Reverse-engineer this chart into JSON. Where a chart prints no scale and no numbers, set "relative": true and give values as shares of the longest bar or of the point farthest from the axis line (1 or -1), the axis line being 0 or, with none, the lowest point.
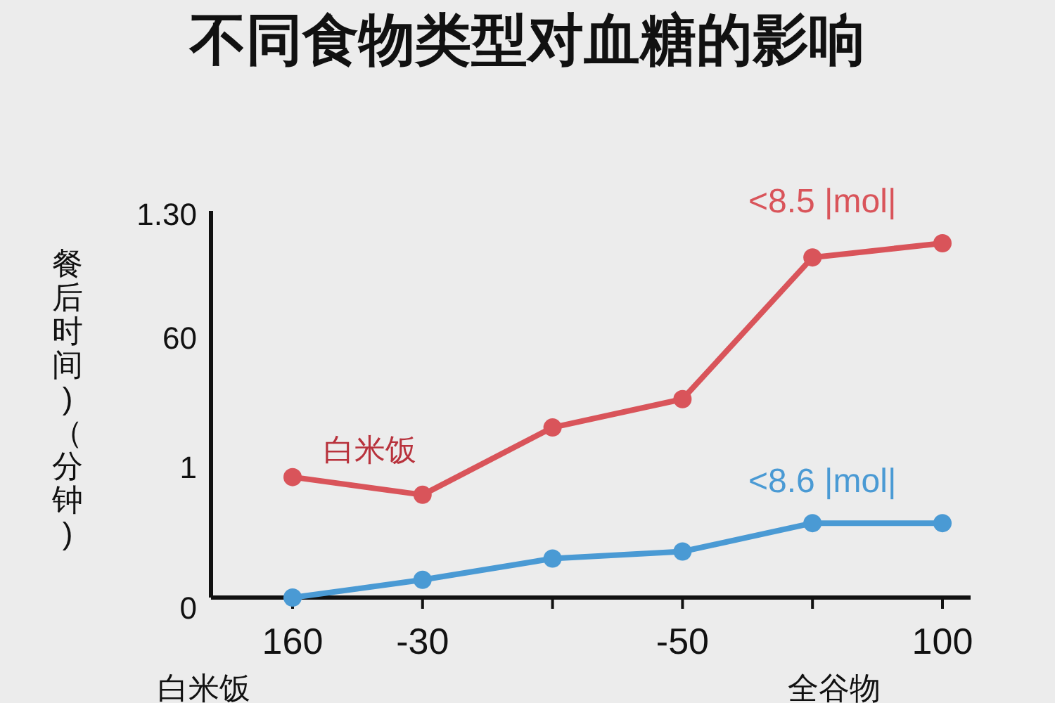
{
  "chart_data": {
    "type": "line",
    "title": "不同食物类型对血糖的影响",
    "ylabel": "餐后时间)（分钟)",
    "relative": true,
    "marker": "circle",
    "categories": [
      "160",
      "-30",
      null,
      "-50",
      null,
      "100"
    ],
    "series": [
      {
        "name": "白米饭",
        "color": "#d9545a",
        "values": [
          0.34,
          0.29,
          0.48,
          0.56,
          0.96,
          1
        ]
      },
      {
        "color": "#4a9ad4",
        "values": [
          0,
          0.05,
          0.11,
          0.13,
          0.21,
          0.21
        ]
      }
    ],
    "annotations": [
      "<8.5 |mol|",
      "<8.6 |mol|",
      "白米饭",
      "全谷物",
      "1.30",
      "60",
      "1",
      "0"
    ]
  }
}
